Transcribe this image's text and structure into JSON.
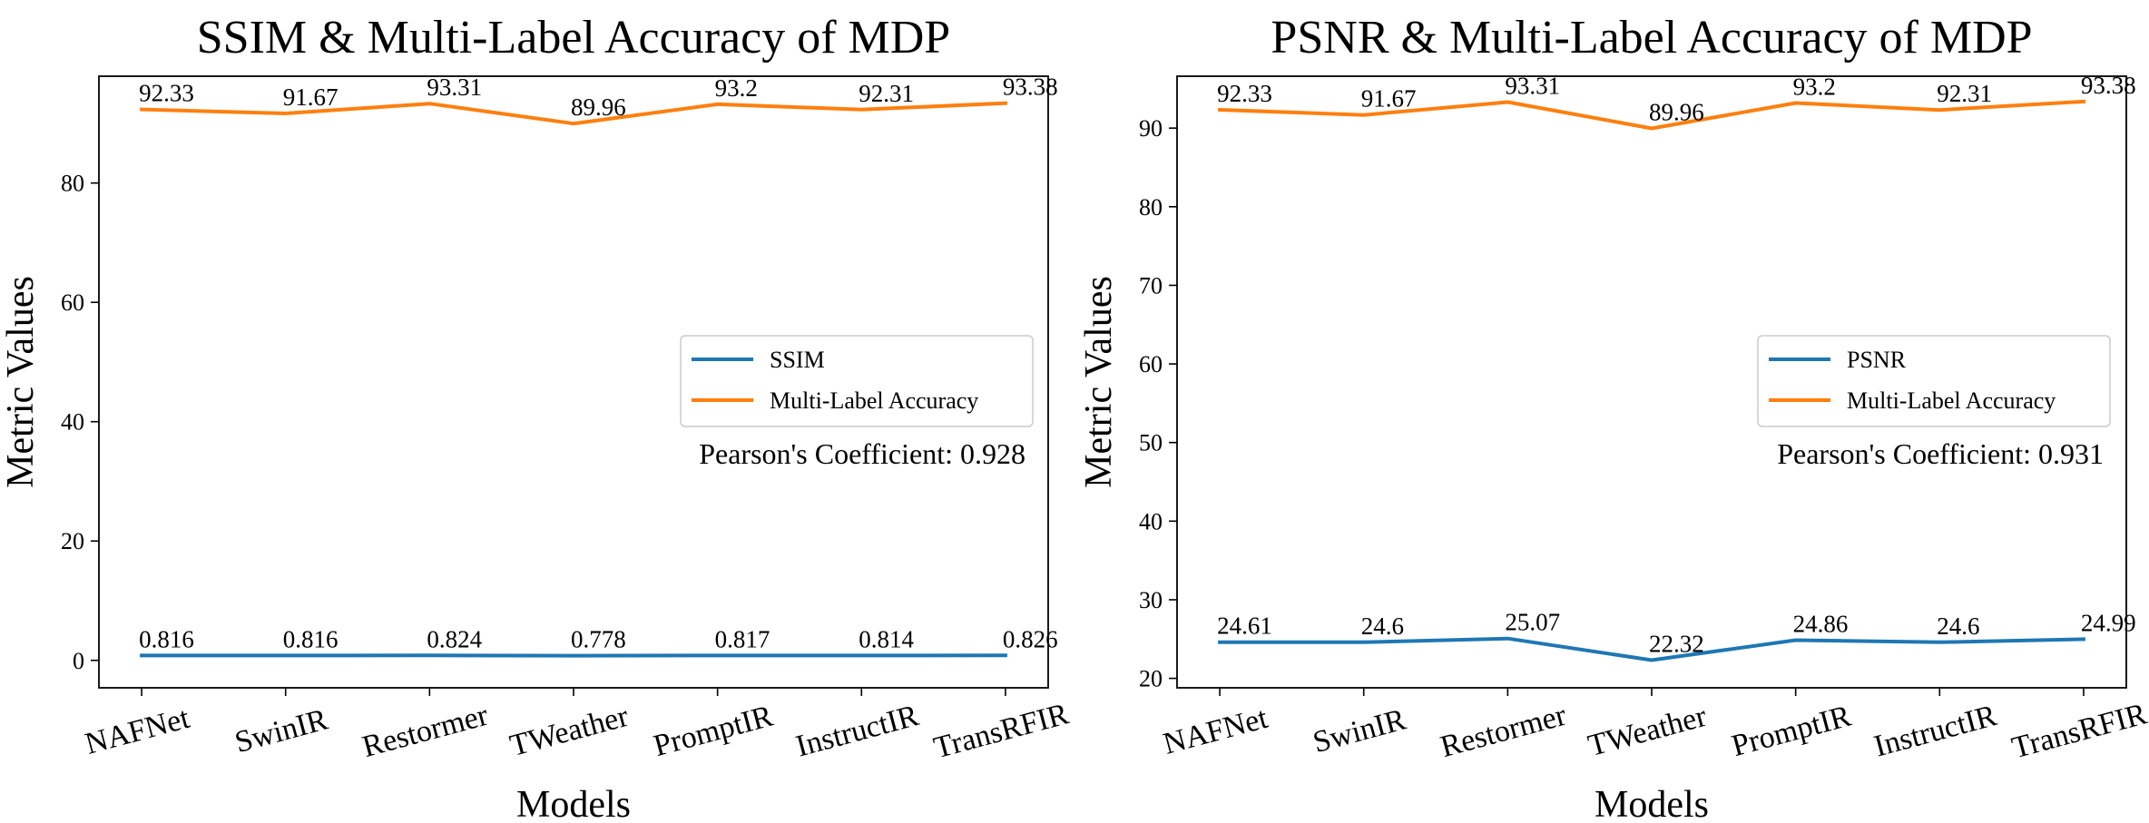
{
  "chart_data": [
    {
      "type": "line",
      "title": "SSIM & Multi-Label Accuracy of MDP",
      "xlabel": "Models",
      "ylabel": "Metric Values",
      "categories": [
        "NAFNet",
        "SwinIR",
        "Restormer",
        "TWeather",
        "PromptIR",
        "InstructIR",
        "TransRFIR"
      ],
      "ylim": [
        -4.6,
        97.9
      ],
      "yticks": [
        0,
        20,
        40,
        60,
        80
      ],
      "series": [
        {
          "name": "SSIM",
          "color": "#1f77b4",
          "values": [
            0.816,
            0.816,
            0.824,
            0.778,
            0.817,
            0.814,
            0.826
          ],
          "labels": [
            "0.816",
            "0.816",
            "0.824",
            "0.778",
            "0.817",
            "0.814",
            "0.826"
          ]
        },
        {
          "name": "Multi-Label Accuracy",
          "color": "#ff7f0e",
          "values": [
            92.33,
            91.67,
            93.31,
            89.96,
            93.2,
            92.31,
            93.38
          ],
          "labels": [
            "92.33",
            "91.67",
            "93.31",
            "89.96",
            "93.2",
            "92.31",
            "93.38"
          ]
        }
      ],
      "legend": "center-right",
      "annotation": "Pearson's Coefficient: 0.928"
    },
    {
      "type": "line",
      "title": "PSNR & Multi-Label Accuracy of MDP",
      "xlabel": "Models",
      "ylabel": "Metric Values",
      "categories": [
        "NAFNet",
        "SwinIR",
        "Restormer",
        "TWeather",
        "PromptIR",
        "InstructIR",
        "TransRFIR"
      ],
      "ylim": [
        18.8,
        96.6
      ],
      "yticks": [
        20,
        30,
        40,
        50,
        60,
        70,
        80,
        90
      ],
      "series": [
        {
          "name": "PSNR",
          "color": "#1f77b4",
          "values": [
            24.61,
            24.6,
            25.07,
            22.32,
            24.86,
            24.6,
            24.99
          ],
          "labels": [
            "24.61",
            "24.6",
            "25.07",
            "22.32",
            "24.86",
            "24.6",
            "24.99"
          ]
        },
        {
          "name": "Multi-Label Accuracy",
          "color": "#ff7f0e",
          "values": [
            92.33,
            91.67,
            93.31,
            89.96,
            93.2,
            92.31,
            93.38
          ],
          "labels": [
            "92.33",
            "91.67",
            "93.31",
            "89.96",
            "93.2",
            "92.31",
            "93.38"
          ]
        }
      ],
      "legend": "center-right",
      "annotation": "Pearson's Coefficient: 0.931"
    }
  ]
}
